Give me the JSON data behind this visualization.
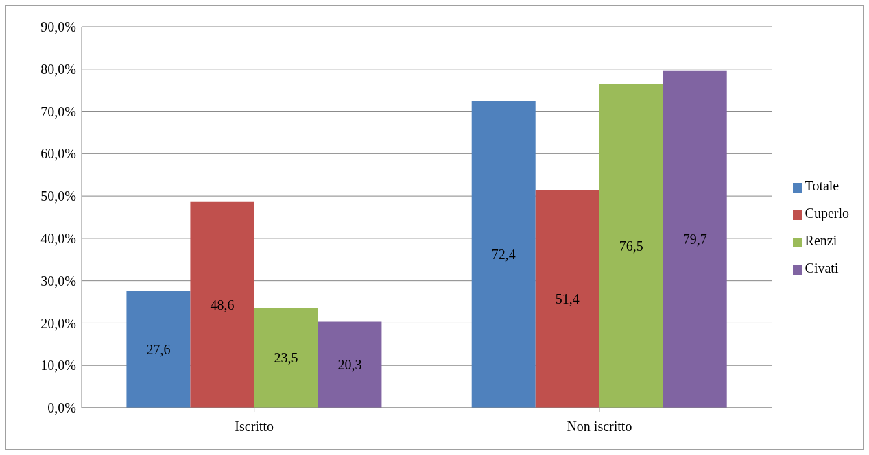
{
  "chart_data": {
    "type": "bar",
    "categories": [
      "Iscritto",
      "Non iscritto"
    ],
    "series": [
      {
        "name": "Totale",
        "color": "#4f81bd",
        "values": [
          27.6,
          72.4
        ],
        "value_labels": [
          "27,6",
          "72,4"
        ]
      },
      {
        "name": "Cuperlo",
        "color": "#c0504d",
        "values": [
          48.6,
          51.4
        ],
        "value_labels": [
          "48,6",
          "51,4"
        ]
      },
      {
        "name": "Renzi",
        "color": "#9bbb59",
        "values": [
          23.5,
          76.5
        ],
        "value_labels": [
          "23,5",
          "76,5"
        ]
      },
      {
        "name": "Civati",
        "color": "#8064a2",
        "values": [
          20.3,
          79.7
        ],
        "value_labels": [
          "20,3",
          "79,7"
        ]
      }
    ],
    "ylim": [
      0,
      90
    ],
    "yticks": [
      {
        "value": 0,
        "label": "0,0%"
      },
      {
        "value": 10,
        "label": "10,0%"
      },
      {
        "value": 20,
        "label": "20,0%"
      },
      {
        "value": 30,
        "label": "30,0%"
      },
      {
        "value": 40,
        "label": "40,0%"
      },
      {
        "value": 50,
        "label": "50,0%"
      },
      {
        "value": 60,
        "label": "60,0%"
      },
      {
        "value": 70,
        "label": "70,0%"
      },
      {
        "value": 80,
        "label": "80,0%"
      },
      {
        "value": 90,
        "label": "90,0%"
      }
    ],
    "grid": "y",
    "legend": "right"
  }
}
